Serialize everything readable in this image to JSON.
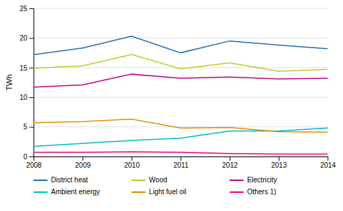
{
  "chart_data": {
    "type": "line",
    "y_label": "TWh",
    "x": [
      2008,
      2009,
      2010,
      2011,
      2012,
      2013,
      2014
    ],
    "xlim": [
      2008,
      2014
    ],
    "xticks": [
      2008,
      2009,
      2010,
      2011,
      2012,
      2013,
      2014
    ],
    "ylim": [
      0,
      25
    ],
    "yticks": [
      0,
      5,
      10,
      15,
      20,
      25
    ],
    "grid": true,
    "legend": "bottom",
    "series": [
      {
        "name": "District heat",
        "color": "#1f6cb0",
        "values": [
          17.2,
          18.3,
          20.3,
          17.5,
          19.5,
          18.8,
          18.2
        ]
      },
      {
        "name": "Wood",
        "color": "#b8cc1e",
        "values": [
          14.9,
          15.3,
          17.2,
          14.8,
          15.8,
          14.4,
          14.7
        ]
      },
      {
        "name": "Electricity",
        "color": "#c0008c",
        "values": [
          11.7,
          12.1,
          13.9,
          13.2,
          13.4,
          13.1,
          13.2
        ]
      },
      {
        "name": "Ambient energy",
        "color": "#00b8c8",
        "values": [
          1.7,
          2.2,
          2.7,
          3.1,
          4.3,
          4.3,
          4.8
        ]
      },
      {
        "name": "Light fuel oil",
        "color": "#e08c00",
        "values": [
          5.7,
          5.9,
          6.3,
          4.8,
          4.9,
          4.2,
          4.1
        ]
      },
      {
        "name": "Others 1)",
        "color": "#e8006c",
        "values": [
          0.7,
          0.7,
          0.8,
          0.7,
          0.5,
          0.4,
          0.4
        ]
      }
    ]
  }
}
